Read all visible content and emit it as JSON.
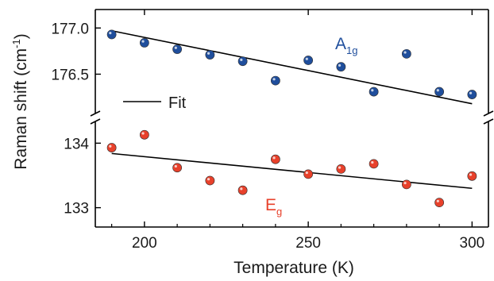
{
  "chart_data": {
    "type": "scatter",
    "broken_y_axis": true,
    "xlabel": "Temperature (K)",
    "ylabel_main": "Raman shift (cm",
    "ylabel_sup": "-1",
    "ylabel_close": ")",
    "xlim": [
      185,
      305
    ],
    "x_ticks": [
      200,
      250,
      300
    ],
    "x_tick_labels": [
      "200",
      "250",
      "300"
    ],
    "panels": [
      {
        "id": "upper",
        "ylim": [
          176.1,
          177.2
        ],
        "y_ticks": [
          176.5,
          177.0
        ],
        "y_tick_labels": [
          "176.5",
          "177.0"
        ],
        "series": {
          "label_main": "A",
          "label_sub": "1g",
          "color": "#1f4e9c",
          "x": [
            190,
            200,
            210,
            220,
            230,
            240,
            250,
            260,
            270,
            280,
            290,
            300
          ],
          "y": [
            176.93,
            176.84,
            176.77,
            176.71,
            176.64,
            176.43,
            176.65,
            176.58,
            176.31,
            176.72,
            176.31,
            176.28
          ]
        },
        "fit": {
          "x": [
            190,
            300
          ],
          "y": [
            176.97,
            176.18
          ]
        }
      },
      {
        "id": "lower",
        "ylim": [
          132.7,
          134.3
        ],
        "y_ticks": [
          133,
          134
        ],
        "y_tick_labels": [
          "133",
          "134"
        ],
        "series": {
          "label_main": "E",
          "label_sub": "g",
          "color": "#e8412b",
          "x": [
            190,
            200,
            210,
            220,
            230,
            240,
            250,
            260,
            270,
            280,
            290,
            300
          ],
          "y": [
            133.93,
            134.13,
            133.62,
            133.42,
            133.27,
            133.75,
            133.52,
            133.6,
            133.68,
            133.36,
            133.08,
            133.49
          ]
        },
        "fit": {
          "x": [
            190,
            300
          ],
          "y": [
            133.84,
            133.3
          ]
        }
      }
    ],
    "legend": {
      "entry": "Fit",
      "placement": "left"
    },
    "fit_color": "#000000",
    "grid": false
  }
}
